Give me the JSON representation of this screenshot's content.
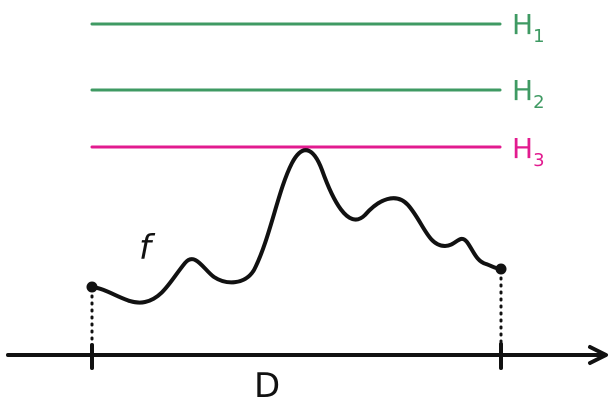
{
  "colors": {
    "green": "#3f9a63",
    "magenta": "#e21b8f",
    "ink": "#111111"
  },
  "labels": {
    "h1": "H",
    "h1_sub": "1",
    "h2": "H",
    "h2_sub": "2",
    "h3": "H",
    "h3_sub": "3",
    "function": "f",
    "domain": "D"
  }
}
